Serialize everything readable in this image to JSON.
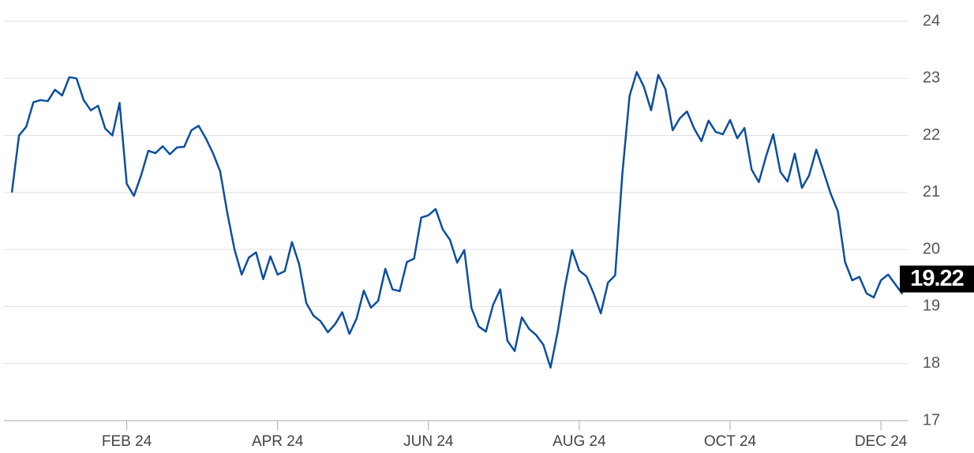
{
  "chart_data": {
    "type": "line",
    "categories": [
      null,
      null,
      null,
      null,
      null,
      null,
      null,
      null,
      null,
      null,
      null,
      null,
      null,
      null,
      null,
      null,
      "FEB 24",
      null,
      null,
      null,
      null,
      null,
      null,
      null,
      null,
      null,
      null,
      null,
      null,
      null,
      null,
      null,
      null,
      null,
      null,
      null,
      null,
      "APR 24",
      null,
      null,
      null,
      null,
      null,
      null,
      null,
      null,
      null,
      null,
      null,
      null,
      null,
      null,
      null,
      null,
      null,
      null,
      null,
      null,
      "JUN 24",
      null,
      null,
      null,
      null,
      null,
      null,
      null,
      null,
      null,
      null,
      null,
      null,
      null,
      null,
      null,
      null,
      null,
      null,
      null,
      null,
      "AUG 24",
      null,
      null,
      null,
      null,
      null,
      null,
      null,
      null,
      null,
      null,
      null,
      null,
      null,
      null,
      null,
      null,
      null,
      null,
      null,
      null,
      "OCT 24",
      null,
      null,
      null,
      null,
      null,
      null,
      null,
      null,
      null,
      null,
      null,
      null,
      null,
      null,
      null,
      null,
      null,
      null,
      null,
      null,
      "DEC 24",
      null,
      null,
      null
    ],
    "values": [
      21.0,
      22.0,
      22.15,
      22.58,
      22.62,
      22.6,
      22.8,
      22.7,
      23.02,
      23.0,
      22.62,
      22.44,
      22.52,
      22.12,
      22.0,
      22.57,
      21.15,
      20.94,
      21.3,
      21.73,
      21.69,
      21.81,
      21.67,
      21.79,
      21.8,
      22.09,
      22.17,
      21.95,
      21.69,
      21.37,
      20.64,
      20.0,
      19.56,
      19.86,
      19.95,
      19.48,
      19.88,
      19.56,
      19.62,
      20.13,
      19.74,
      19.06,
      18.84,
      18.74,
      18.55,
      18.69,
      18.9,
      18.52,
      18.79,
      19.28,
      18.98,
      19.1,
      19.66,
      19.3,
      19.27,
      19.78,
      19.84,
      20.56,
      20.6,
      20.71,
      20.35,
      20.17,
      19.77,
      19.99,
      18.97,
      18.65,
      18.56,
      19.03,
      19.3,
      18.4,
      18.22,
      18.81,
      18.61,
      18.5,
      18.33,
      17.93,
      18.56,
      19.34,
      19.99,
      19.63,
      19.53,
      19.23,
      18.88,
      19.42,
      19.55,
      21.33,
      22.69,
      23.11,
      22.85,
      22.44,
      23.06,
      22.81,
      22.09,
      22.3,
      22.42,
      22.12,
      21.9,
      22.26,
      22.06,
      22.02,
      22.27,
      21.95,
      22.13,
      21.4,
      21.18,
      21.63,
      22.02,
      21.36,
      21.19,
      21.68,
      21.08,
      21.3,
      21.75,
      21.37,
      20.98,
      20.67,
      19.78,
      19.46,
      19.52,
      19.23,
      19.16,
      19.46,
      19.56,
      19.39,
      19.22
    ],
    "color": "#0b4f9e",
    "ylim": [
      17,
      24
    ],
    "yticks": [
      17,
      18,
      19,
      20,
      21,
      22,
      23,
      24
    ],
    "grid": true
  }
}
